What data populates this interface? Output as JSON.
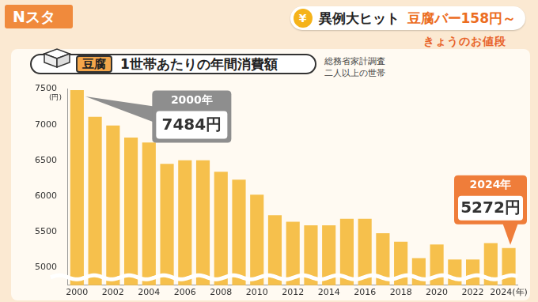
{
  "header": {
    "program": "Nスタ",
    "badge": "¥",
    "headline_black": "異例大ヒット",
    "headline_orange": "豆腐バー158円～",
    "corner": "きょうのお値段"
  },
  "chart_data": {
    "type": "bar",
    "title_tag": "豆腐",
    "title": "1世帯あたりの年間消費額",
    "source": [
      "総務省家計調査",
      "二人以上の世帯"
    ],
    "y_label": "(円)",
    "categories": [
      "2000",
      null,
      "2002",
      null,
      "2004",
      null,
      "2006",
      null,
      "2008",
      null,
      "2010",
      null,
      "2012",
      null,
      "2014",
      null,
      "2016",
      null,
      "2018",
      null,
      "2020",
      null,
      "2022",
      null,
      "2024(年)"
    ],
    "values": [
      7484,
      7110,
      6990,
      6820,
      6750,
      6450,
      6500,
      6500,
      6340,
      6230,
      6020,
      5730,
      5640,
      5590,
      5590,
      5680,
      5680,
      5480,
      5360,
      5130,
      5320,
      5110,
      5110,
      5340,
      5272
    ],
    "color": "#f6c04c",
    "ylim": [
      4750,
      7500
    ],
    "yticks": [
      5000,
      5500,
      6000,
      6500,
      7000,
      7500
    ],
    "grid": false,
    "annotations": [
      {
        "category": "2000",
        "title": "2000年",
        "text": "7484円",
        "color": "#8e8e8e"
      },
      {
        "category": "2024(年)",
        "title": "2024年",
        "text": "5272円",
        "color": "#ef7d3a"
      }
    ]
  }
}
